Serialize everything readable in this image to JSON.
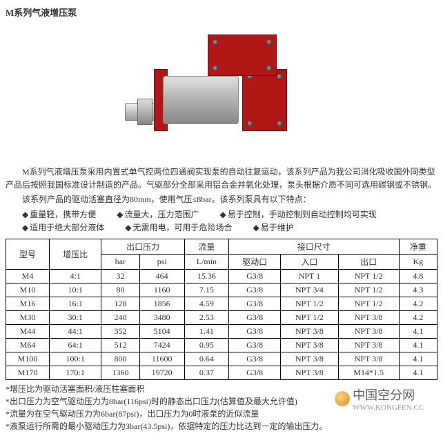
{
  "title": "M系列气液增压泵",
  "paragraphs": [
    "M系列气液增压泵采用内置式单气控两位四通阀实现泵的自动往复运动，该系列产品为我公司消化吸收国外同类型产品后按照我国标准设计制造的产品。气驱部分全部采用铝合金并氧化处理，泵头根据介质不同可选用碳钢或不锈钢。",
    "该系列产品的驱动活塞直径为80mm，使用气压≤8bar。该系列泵具有以下特点："
  ],
  "bullets": [
    [
      "重量轻，携带方便",
      "流量大，压力范围广",
      "易于控制，手动控制到自动控制均可实现"
    ],
    [
      "适用于绝大部分液体",
      "无需用电，可用于危险场合",
      "易于维护"
    ]
  ],
  "table": {
    "head1": [
      "型号",
      "增压比",
      "出口压力",
      "流量",
      "接口尺寸",
      "净重"
    ],
    "head2": [
      "bar",
      "psi",
      "L/min",
      "驱动口",
      "入口",
      "出口",
      "Kg"
    ],
    "rows": [
      [
        "M4",
        "4:1",
        "32",
        "464",
        "15.36",
        "G3/8",
        "NPT 1",
        "NPT 1/2",
        "4.8"
      ],
      [
        "M10",
        "10:1",
        "80",
        "1160",
        "7.15",
        "G3/8",
        "NPT 3/4",
        "NPT 1/2",
        "4.3"
      ],
      [
        "M16",
        "16:1",
        "128",
        "1856",
        "4.59",
        "G3/8",
        "NPT 1/2",
        "NPT 1/2",
        "4.2"
      ],
      [
        "M30",
        "30:1",
        "240",
        "3480",
        "2.53",
        "G3/8",
        "NPT 1/2",
        "NPT 3/8",
        "4.2"
      ],
      [
        "M44",
        "44:1",
        "352",
        "5104",
        "1.41",
        "G3/8",
        "NPT 3/8",
        "NPT 3/8",
        "4.1"
      ],
      [
        "M64",
        "64:1",
        "512",
        "7424",
        "0.95",
        "G3/8",
        "NPT 3/8",
        "NPT 3/8",
        "4.1"
      ],
      [
        "M100",
        "100:1",
        "800",
        "11600",
        "0.64",
        "G3/8",
        "NPT 3/8",
        "NPT 3/8",
        "4.1"
      ],
      [
        "M170",
        "170:1",
        "1360",
        "19720",
        "0.37",
        "G3/8",
        "NPT 3/8",
        "M14*1.5",
        "4.1"
      ]
    ]
  },
  "notes": [
    "增压比为驱动活塞面积/液压柱塞面积",
    "出口压力为空气驱动压力为8bar(116psi)时的静态出口压力(估算值及最大允许值)",
    "流量为在空气驱动压力为6bar(87psi)，出口压力为0时液泵的近似流量",
    "液泵运行所需的最小驱动压力为3bar(43.5psi)，依据特定的压力比达到一定的输出压力。"
  ],
  "watermark": {
    "cn": "中国空分网",
    "url": "WWW.KONGFEN.CC"
  }
}
